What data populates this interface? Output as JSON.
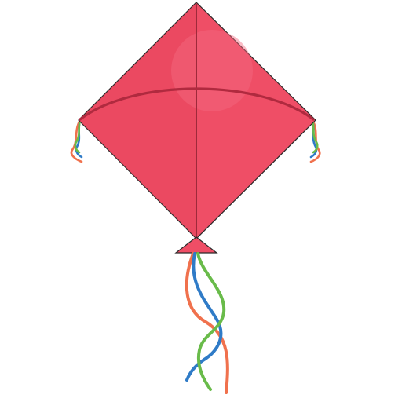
{
  "illustration": {
    "subject": "kite-illustration",
    "colors": {
      "kite_body": "#ef4e66",
      "kite_shadow": "#d8364f",
      "kite_highlight": "#f46a80",
      "kite_outline": "#2a2a2a",
      "spine_stroke": "#9e2a3b",
      "bow_stroke": "#b02a3f",
      "ribbon_orange": "#f0714d",
      "ribbon_blue": "#2f7bc7",
      "ribbon_green": "#69bb4a",
      "background": "#ffffff"
    }
  }
}
